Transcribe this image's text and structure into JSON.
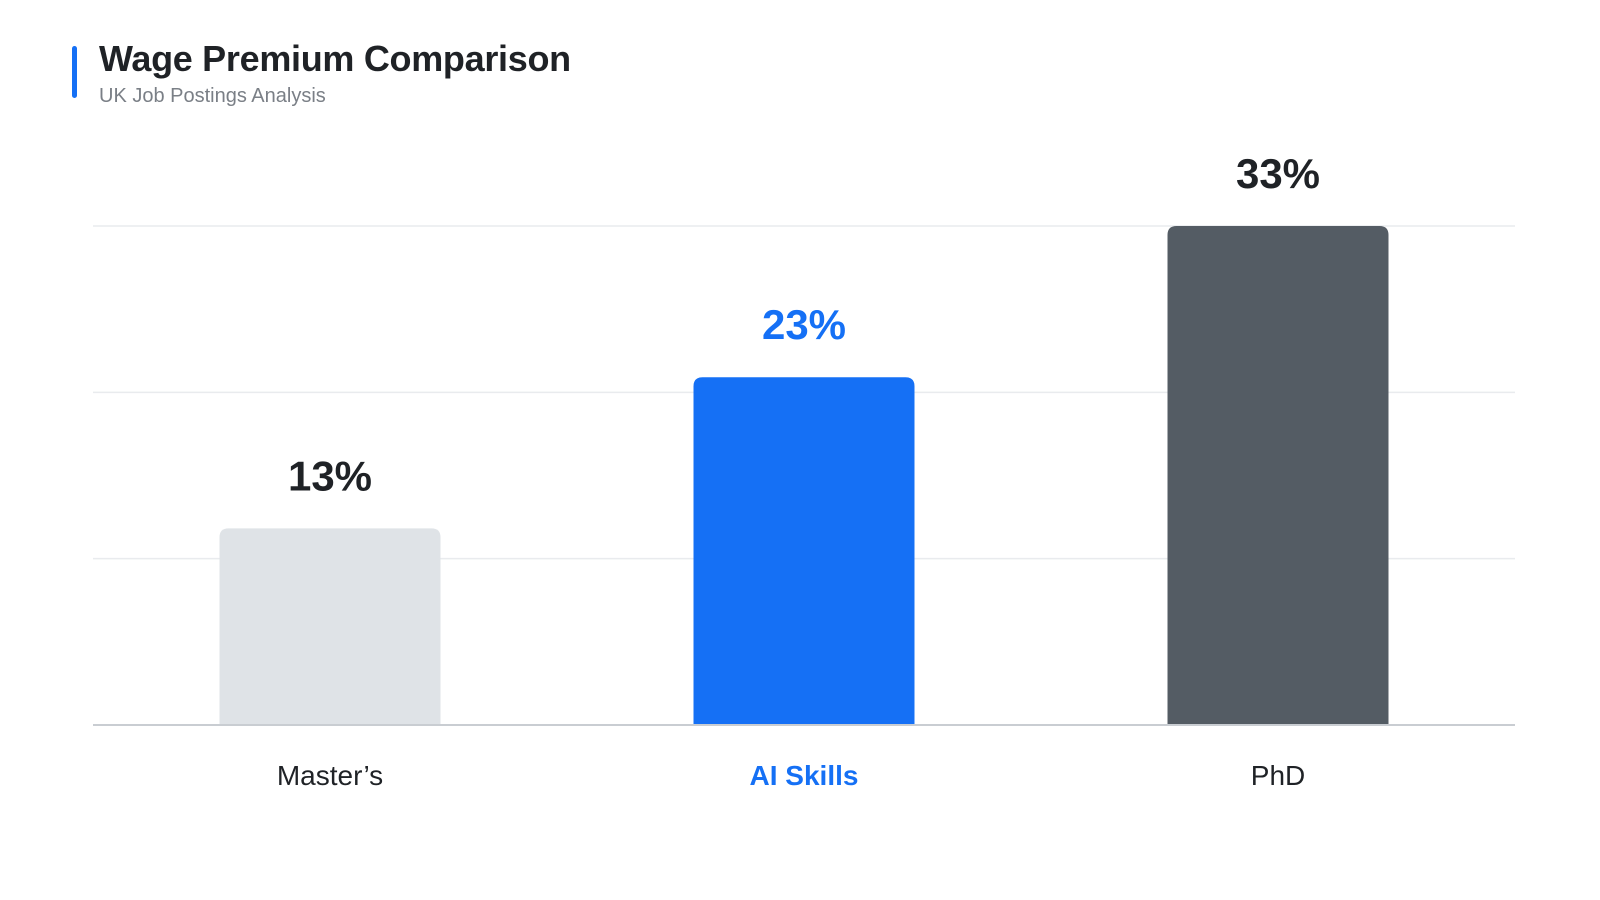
{
  "header": {
    "title": "Wage Premium Comparison",
    "subtitle": "UK Job Postings Analysis",
    "accent_color": "#1570f5"
  },
  "chart_data": {
    "type": "bar",
    "categories": [
      "Master’s",
      "AI Skills",
      "PhD"
    ],
    "values": [
      13,
      23,
      33
    ],
    "value_labels": [
      "13%",
      "23%",
      "33%"
    ],
    "unit": "%",
    "title": "Wage Premium Comparison",
    "subtitle": "UK Job Postings Analysis",
    "xlabel": "",
    "ylabel": "",
    "ylim": [
      0,
      33
    ],
    "grid": true,
    "legend": "none",
    "highlight_index": 1,
    "bar_colors": [
      "#dfe3e7",
      "#1570f5",
      "#545c64"
    ],
    "value_label_colors": [
      "#1f2226",
      "#1570f5",
      "#1f2226"
    ],
    "category_label_colors": [
      "#1f2226",
      "#1570f5",
      "#1f2226"
    ],
    "category_label_bold": [
      false,
      true,
      false
    ],
    "grid_color": "#e9ebee",
    "axis_color": "#c9cdd2"
  }
}
